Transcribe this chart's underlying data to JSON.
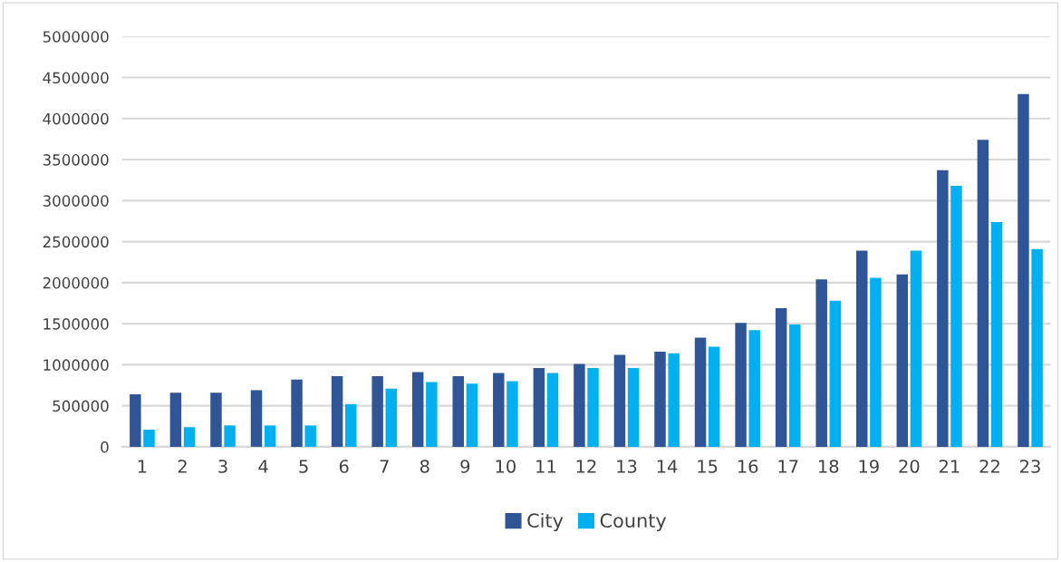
{
  "chart_data": {
    "type": "bar",
    "categories": [
      "1",
      "2",
      "3",
      "4",
      "5",
      "6",
      "7",
      "8",
      "9",
      "10",
      "11",
      "12",
      "13",
      "14",
      "15",
      "16",
      "17",
      "18",
      "19",
      "20",
      "21",
      "22",
      "23"
    ],
    "series": [
      {
        "name": "City",
        "color": "#2f5597",
        "values": [
          640000,
          660000,
          660000,
          690000,
          820000,
          860000,
          860000,
          910000,
          860000,
          900000,
          960000,
          1010000,
          1120000,
          1160000,
          1330000,
          1510000,
          1690000,
          2040000,
          2390000,
          2100000,
          3370000,
          3740000,
          4300000
        ]
      },
      {
        "name": "County",
        "color": "#00b0f0",
        "values": [
          210000,
          240000,
          260000,
          260000,
          260000,
          520000,
          710000,
          790000,
          770000,
          800000,
          900000,
          960000,
          960000,
          1140000,
          1220000,
          1420000,
          1490000,
          1780000,
          2060000,
          2390000,
          3180000,
          2740000,
          2410000
        ]
      }
    ],
    "ylim": [
      0,
      5000000
    ],
    "yticks": [
      0,
      500000,
      1000000,
      1500000,
      2000000,
      2500000,
      3000000,
      3500000,
      4000000,
      4500000,
      5000000
    ],
    "grid": "y",
    "legend": "bottom"
  }
}
